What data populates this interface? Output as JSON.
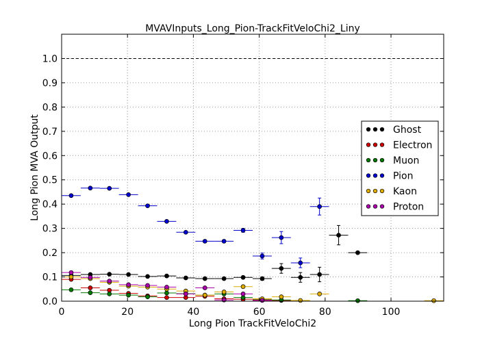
{
  "chart_data": {
    "type": "scatter",
    "title": "MVAVInputs_Long_Pion-TrackFitVeloChi2_Liny",
    "xlabel": "Long Pion TrackFitVeloChi2",
    "ylabel": "Long Pion MVA Output",
    "xlim": [
      0,
      116
    ],
    "ylim": [
      0,
      1.1
    ],
    "xticks": [
      "0",
      "20",
      "40",
      "60",
      "80",
      "100"
    ],
    "yticks": [
      "0.0",
      "0.1",
      "0.2",
      "0.3",
      "0.4",
      "0.5",
      "0.6",
      "0.7",
      "0.8",
      "0.9",
      "1.0"
    ],
    "reference_line": 1.0,
    "bin_halfwidth": 2.9,
    "legend_position": "center-right",
    "series": [
      {
        "name": "Ghost",
        "color": "#000000",
        "x": [
          2.9,
          8.7,
          14.5,
          20.3,
          26.1,
          31.9,
          37.7,
          43.5,
          49.3,
          55.1,
          60.9,
          66.7,
          72.5,
          78.3,
          84.1,
          89.9
        ],
        "y": [
          0.106,
          0.11,
          0.111,
          0.11,
          0.102,
          0.104,
          0.096,
          0.093,
          0.093,
          0.098,
          0.093,
          0.135,
          0.098,
          0.11,
          0.272,
          0.2
        ],
        "err": [
          0.004,
          0.003,
          0.003,
          0.003,
          0.003,
          0.003,
          0.003,
          0.004,
          0.004,
          0.005,
          0.007,
          0.02,
          0.02,
          0.03,
          0.04,
          0.005
        ]
      },
      {
        "name": "Electron",
        "color": "#cc0000",
        "x": [
          2.9,
          8.7,
          14.5,
          20.3,
          26.1,
          31.9,
          37.7,
          43.5,
          49.3,
          55.1,
          60.9,
          66.7
        ],
        "y": [
          0.09,
          0.055,
          0.045,
          0.032,
          0.022,
          0.015,
          0.015,
          0.02,
          0.01,
          0.008,
          0.005,
          0.003
        ],
        "err": [
          0.003,
          0.003,
          0.003,
          0.003,
          0.003,
          0.003,
          0.003,
          0.003,
          0.003,
          0.003,
          0.003,
          0.003
        ]
      },
      {
        "name": "Muon",
        "color": "#007700",
        "x": [
          2.9,
          8.7,
          14.5,
          20.3,
          26.1,
          31.9,
          37.7,
          43.5,
          49.3,
          55.1,
          60.9,
          66.7,
          89.9
        ],
        "y": [
          0.047,
          0.035,
          0.03,
          0.025,
          0.018,
          0.034,
          0.031,
          0.025,
          0.03,
          0.015,
          0.008,
          0.005,
          0.002
        ],
        "err": [
          0.003,
          0.003,
          0.003,
          0.003,
          0.003,
          0.003,
          0.003,
          0.003,
          0.003,
          0.003,
          0.003,
          0.003,
          0.002
        ]
      },
      {
        "name": "Pion",
        "color": "#0000cc",
        "x": [
          2.9,
          8.7,
          14.5,
          20.3,
          26.1,
          31.9,
          37.7,
          43.5,
          49.3,
          55.1,
          60.9,
          66.7,
          72.5,
          78.3
        ],
        "y": [
          0.435,
          0.466,
          0.465,
          0.439,
          0.393,
          0.329,
          0.284,
          0.247,
          0.247,
          0.292,
          0.186,
          0.262,
          0.158,
          0.39
        ],
        "err": [
          0.003,
          0.003,
          0.003,
          0.003,
          0.004,
          0.004,
          0.005,
          0.005,
          0.005,
          0.008,
          0.012,
          0.025,
          0.02,
          0.035
        ]
      },
      {
        "name": "Kaon",
        "color": "#ddaa00",
        "x": [
          2.9,
          8.7,
          14.5,
          20.3,
          26.1,
          31.9,
          37.7,
          43.5,
          49.3,
          55.1,
          60.9,
          66.7,
          72.5,
          78.3,
          113.0
        ],
        "y": [
          0.1,
          0.093,
          0.078,
          0.062,
          0.058,
          0.05,
          0.042,
          0.025,
          0.038,
          0.06,
          0.01,
          0.018,
          0.003,
          0.03,
          0.002
        ],
        "err": [
          0.003,
          0.003,
          0.003,
          0.003,
          0.003,
          0.003,
          0.003,
          0.003,
          0.003,
          0.005,
          0.003,
          0.004,
          0.002,
          0.004,
          0.002
        ]
      },
      {
        "name": "Proton",
        "color": "#aa00aa",
        "x": [
          2.9,
          8.7,
          14.5,
          20.3,
          26.1,
          31.9,
          37.7,
          43.5,
          49.3,
          55.1,
          60.9
        ],
        "y": [
          0.118,
          0.098,
          0.083,
          0.068,
          0.065,
          0.058,
          0.03,
          0.055,
          0.005,
          0.03,
          0.003
        ],
        "err": [
          0.003,
          0.003,
          0.003,
          0.003,
          0.003,
          0.003,
          0.003,
          0.003,
          0.003,
          0.004,
          0.002
        ]
      }
    ]
  }
}
